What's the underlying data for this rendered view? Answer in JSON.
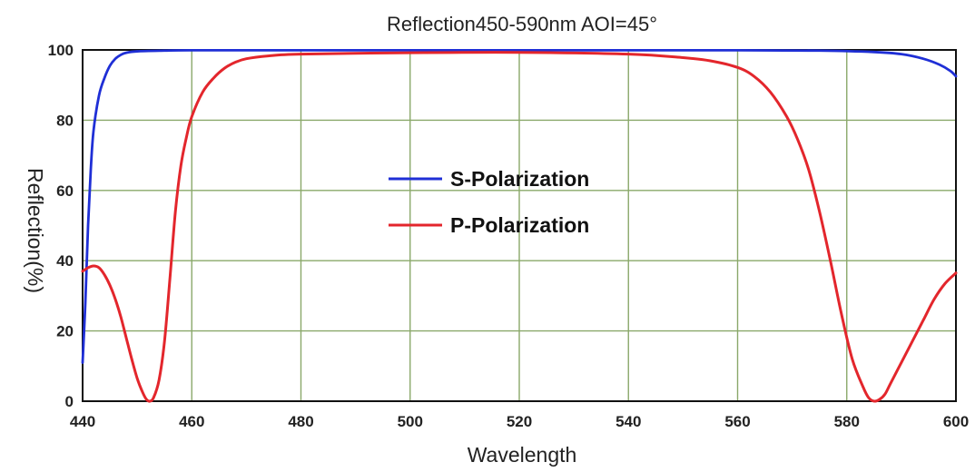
{
  "chart_data": {
    "type": "line",
    "title": "Reflection450-590nm AOI=45°",
    "xlabel": "Wavelength",
    "ylabel": "Reflection(%)",
    "xlim": [
      440,
      600
    ],
    "ylim": [
      0,
      100
    ],
    "xticks": [
      440,
      460,
      480,
      500,
      520,
      540,
      560,
      580,
      600
    ],
    "yticks": [
      0,
      20,
      40,
      60,
      80,
      100
    ],
    "grid": true,
    "grid_color": "#8aa86a",
    "legend_position": "center",
    "series": [
      {
        "name": "S-Polarization",
        "color": "#1f2fd6",
        "points": [
          [
            440,
            11
          ],
          [
            440.5,
            28
          ],
          [
            441,
            50
          ],
          [
            441.5,
            66
          ],
          [
            442,
            77
          ],
          [
            443,
            87
          ],
          [
            444,
            92
          ],
          [
            445,
            95.5
          ],
          [
            446,
            97.5
          ],
          [
            447,
            98.6
          ],
          [
            448,
            99.2
          ],
          [
            450,
            99.6
          ],
          [
            455,
            99.8
          ],
          [
            460,
            99.9
          ],
          [
            480,
            99.9
          ],
          [
            500,
            99.9
          ],
          [
            520,
            99.9
          ],
          [
            540,
            99.9
          ],
          [
            560,
            99.9
          ],
          [
            575,
            99.8
          ],
          [
            585,
            99.4
          ],
          [
            590,
            98.8
          ],
          [
            594,
            97.5
          ],
          [
            597,
            95.8
          ],
          [
            599,
            94
          ],
          [
            600,
            92.5
          ]
        ]
      },
      {
        "name": "P-Polarization",
        "color": "#e3262c",
        "points": [
          [
            440,
            37
          ],
          [
            441,
            38
          ],
          [
            442,
            38.5
          ],
          [
            443,
            38
          ],
          [
            444,
            36
          ],
          [
            445,
            33
          ],
          [
            446,
            29
          ],
          [
            447,
            24
          ],
          [
            448,
            18
          ],
          [
            449,
            12
          ],
          [
            450,
            6.5
          ],
          [
            451,
            2.5
          ],
          [
            451.7,
            0.5
          ],
          [
            452.3,
            0
          ],
          [
            453,
            1
          ],
          [
            454,
            6
          ],
          [
            455,
            17
          ],
          [
            456,
            35
          ],
          [
            457,
            54
          ],
          [
            458,
            67
          ],
          [
            459,
            75
          ],
          [
            460,
            81
          ],
          [
            462,
            88
          ],
          [
            464,
            92
          ],
          [
            466,
            94.8
          ],
          [
            468,
            96.5
          ],
          [
            470,
            97.5
          ],
          [
            474,
            98.3
          ],
          [
            480,
            98.8
          ],
          [
            500,
            99.2
          ],
          [
            520,
            99.3
          ],
          [
            540,
            98.8
          ],
          [
            550,
            97.8
          ],
          [
            555,
            96.9
          ],
          [
            560,
            95
          ],
          [
            563,
            92.5
          ],
          [
            566,
            88
          ],
          [
            569,
            81
          ],
          [
            571,
            74.5
          ],
          [
            573,
            66
          ],
          [
            575,
            54
          ],
          [
            577,
            40
          ],
          [
            579,
            25
          ],
          [
            581,
            12
          ],
          [
            583,
            4
          ],
          [
            584,
            1
          ],
          [
            585,
            0
          ],
          [
            586,
            0.5
          ],
          [
            587,
            2
          ],
          [
            588,
            5
          ],
          [
            590,
            11
          ],
          [
            592,
            17
          ],
          [
            594,
            23
          ],
          [
            596,
            29
          ],
          [
            598,
            33.5
          ],
          [
            600,
            36.5
          ]
        ]
      }
    ]
  }
}
